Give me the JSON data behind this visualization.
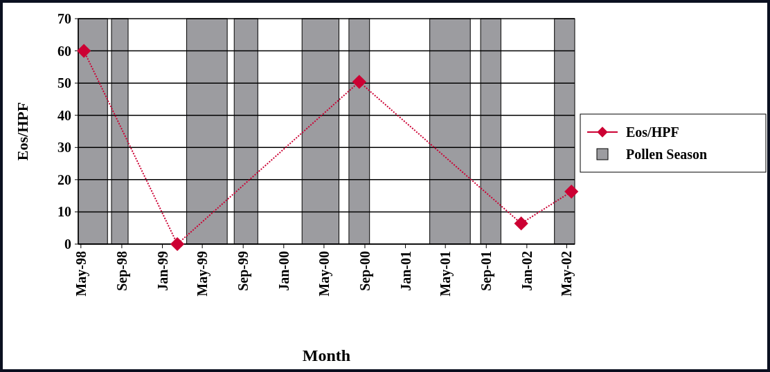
{
  "chart_data": {
    "type": "line",
    "xlabel": "Month",
    "ylabel": "Eos/HPF",
    "x": [
      "1998-05-10",
      "1999-02-15",
      "2000-08-15",
      "2001-12-15",
      "2002-05-15"
    ],
    "series": [
      {
        "name": "Eos/HPF",
        "color": "#cc0033",
        "values": [
          60,
          0,
          50.4,
          6.4,
          16.3
        ]
      }
    ],
    "xlim": [
      "1998-04-23",
      "2002-05-25"
    ],
    "xticks": [
      {
        "value": "1998-05-01",
        "label": "May-98"
      },
      {
        "value": "1998-09-01",
        "label": "Sep-98"
      },
      {
        "value": "1999-01-01",
        "label": "Jan-99"
      },
      {
        "value": "1999-05-01",
        "label": "May-99"
      },
      {
        "value": "1999-09-01",
        "label": "Sep-99"
      },
      {
        "value": "2000-01-01",
        "label": "Jan-00"
      },
      {
        "value": "2000-05-01",
        "label": "May-00"
      },
      {
        "value": "2000-09-01",
        "label": "Sep-00"
      },
      {
        "value": "2001-01-01",
        "label": "Jan-01"
      },
      {
        "value": "2001-05-01",
        "label": "May-01"
      },
      {
        "value": "2001-09-01",
        "label": "Sep-01"
      },
      {
        "value": "2002-01-01",
        "label": "Jan-02"
      },
      {
        "value": "2002-05-01",
        "label": "May-02"
      }
    ],
    "ylim": [
      0,
      70
    ],
    "yticks": [
      0,
      10,
      20,
      30,
      40,
      50,
      60,
      70
    ],
    "bands": [
      {
        "axis": "x",
        "from": "1998-04-23",
        "to": "1998-07-20",
        "label": "Pollen Season",
        "color": "#9c9ca0"
      },
      {
        "axis": "x",
        "from": "1998-08-01",
        "to": "1998-09-20",
        "color": "#9c9ca0"
      },
      {
        "axis": "x",
        "from": "1999-03-15",
        "to": "1999-07-15",
        "color": "#9c9ca0"
      },
      {
        "axis": "x",
        "from": "1999-08-05",
        "to": "1999-10-15",
        "color": "#9c9ca0"
      },
      {
        "axis": "x",
        "from": "2000-02-25",
        "to": "2000-06-15",
        "color": "#9c9ca0"
      },
      {
        "axis": "x",
        "from": "2000-07-15",
        "to": "2000-09-15",
        "color": "#9c9ca0"
      },
      {
        "axis": "x",
        "from": "2001-03-15",
        "to": "2001-07-15",
        "color": "#9c9ca0"
      },
      {
        "axis": "x",
        "from": "2001-08-15",
        "to": "2001-10-15",
        "color": "#9c9ca0"
      },
      {
        "axis": "x",
        "from": "2002-03-25",
        "to": "2002-05-25",
        "color": "#9c9ca0"
      }
    ],
    "grid": "y",
    "legend": "right",
    "marker": "diamond",
    "line_style": "dotted"
  }
}
